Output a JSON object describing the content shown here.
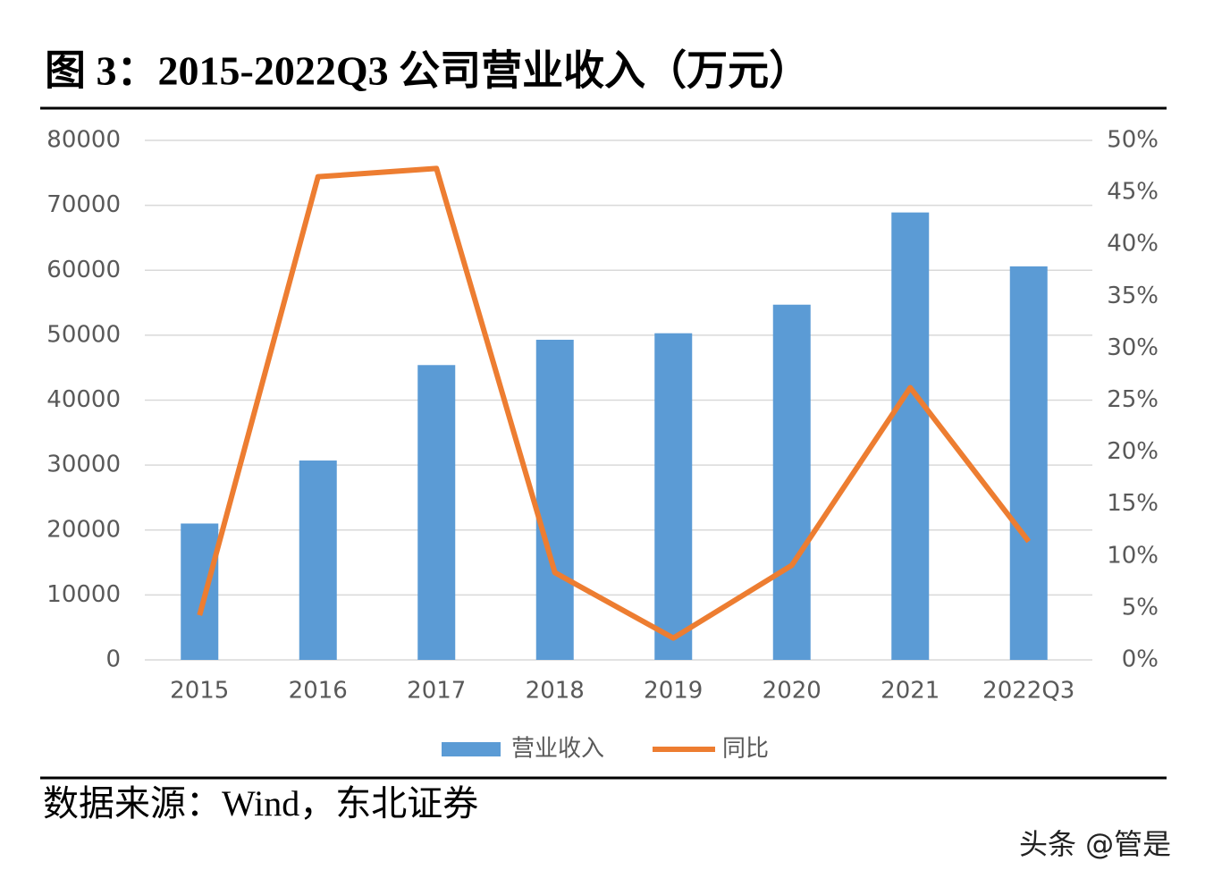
{
  "chart_data": {
    "type": "bar",
    "title": "图 3：2015-2022Q3 公司营业收入（万元）",
    "categories": [
      "2015",
      "2016",
      "2017",
      "2018",
      "2019",
      "2020",
      "2021",
      "2022Q3"
    ],
    "series": [
      {
        "name": "营业收入",
        "type": "bar",
        "color": "#5b9bd5",
        "values": [
          21000,
          30700,
          45400,
          49300,
          50300,
          54700,
          68900,
          60600
        ]
      },
      {
        "name": "同比",
        "type": "line",
        "axis": "y2",
        "color": "#ed7d31",
        "values": [
          4.3,
          46.5,
          47.3,
          8.4,
          2.1,
          9.1,
          26.2,
          11.4
        ]
      }
    ],
    "ylim": [
      0,
      80000
    ],
    "yticks": [
      0,
      10000,
      20000,
      30000,
      40000,
      50000,
      60000,
      70000,
      80000
    ],
    "y2lim": [
      0,
      50
    ],
    "y2ticks": [
      {
        "value": 0,
        "label": "0%"
      },
      {
        "value": 5,
        "label": "5%"
      },
      {
        "value": 10,
        "label": "10%"
      },
      {
        "value": 15,
        "label": "15%"
      },
      {
        "value": 20,
        "label": "20%"
      },
      {
        "value": 25,
        "label": "25%"
      },
      {
        "value": 30,
        "label": "30%"
      },
      {
        "value": 35,
        "label": "35%"
      },
      {
        "value": 40,
        "label": "40%"
      },
      {
        "value": 45,
        "label": "45%"
      },
      {
        "value": 50,
        "label": "50%"
      }
    ],
    "grid": true,
    "legend": "bottom"
  },
  "source": "数据来源：Wind，东北证券",
  "watermark": "头条 @管是"
}
